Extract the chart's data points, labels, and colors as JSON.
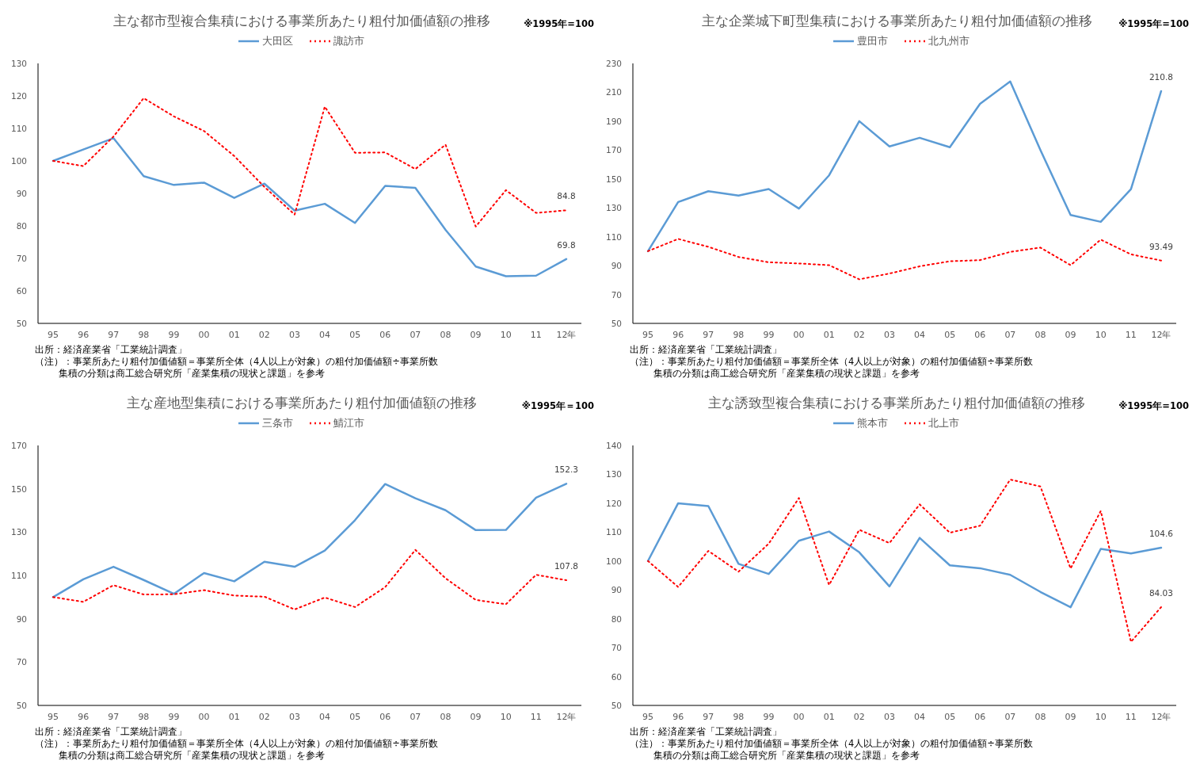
{
  "chart_data": [
    {
      "type": "line",
      "title": "主な都市型複合集積における事業所あたり粗付加価値額の推移",
      "categories": [
        "95",
        "96",
        "97",
        "98",
        "99",
        "00",
        "01",
        "02",
        "03",
        "04",
        "05",
        "06",
        "07",
        "08",
        "09",
        "10",
        "11",
        "12年"
      ],
      "ylim": [
        50,
        130
      ],
      "yticks": [
        50,
        60,
        70,
        80,
        90,
        100,
        110,
        120,
        130
      ],
      "grid": false,
      "legend": "top",
      "annotations": [
        "※1995年=100",
        "出所：経済産業省「工業統計調査」",
        "（注）：事業所あたり粗付加価値額＝事業所全体（4人以上が対象）の粗付加価値額÷事業所数",
        "集積の分類は商工総合研究所「産業集積の現状と課題」を参考"
      ],
      "series": [
        {
          "name": "大田区",
          "color": "#5b9bd5",
          "line_style": "solid",
          "values": [
            100,
            103.5,
            107,
            95.3,
            92.6,
            93.3,
            88.6,
            93,
            84.7,
            86.8,
            80.9,
            92.3,
            91.7,
            78.8,
            67.5,
            64.5,
            64.7,
            69.8
          ],
          "value_labels": [
            null,
            null,
            null,
            null,
            null,
            null,
            null,
            null,
            null,
            null,
            null,
            null,
            null,
            null,
            null,
            null,
            null,
            "69.8"
          ]
        },
        {
          "name": "諏訪市",
          "color": "#ff0000",
          "line_style": "dotted",
          "values": [
            100,
            98.4,
            107.5,
            119.3,
            113.7,
            109.2,
            101.5,
            92,
            83.5,
            116.7,
            102.5,
            102.6,
            97.5,
            105,
            79.8,
            91,
            84,
            84.8
          ],
          "value_labels": [
            null,
            null,
            null,
            null,
            null,
            null,
            null,
            null,
            null,
            null,
            null,
            null,
            null,
            null,
            null,
            null,
            null,
            "84.8"
          ]
        }
      ]
    },
    {
      "type": "line",
      "title": "主な企業城下町型集積における事業所あたり粗付加価値額の推移",
      "categories": [
        "95",
        "96",
        "97",
        "98",
        "99",
        "00",
        "01",
        "02",
        "03",
        "04",
        "05",
        "06",
        "07",
        "08",
        "09",
        "10",
        "11",
        "12年"
      ],
      "ylim": [
        50,
        230
      ],
      "yticks": [
        50,
        70,
        90,
        110,
        130,
        150,
        170,
        190,
        210,
        230
      ],
      "grid": false,
      "legend": "top",
      "annotations": [
        "※1995年=100",
        "出所：経済産業省「工業統計調査」",
        "（注）：事業所あたり粗付加価値額＝事業所全体（4人以上が対象）の粗付加価値額÷事業所数",
        "集積の分類は商工総合研究所「産業集積の現状と課題」を参考"
      ],
      "series": [
        {
          "name": "豊田市",
          "color": "#5b9bd5",
          "line_style": "solid",
          "values": [
            100,
            134,
            141.5,
            138.5,
            143,
            129.5,
            152.5,
            190,
            172.5,
            178.5,
            172,
            202,
            217.5,
            170,
            125,
            120.3,
            143,
            210.8
          ],
          "value_labels": [
            null,
            null,
            null,
            null,
            null,
            null,
            null,
            null,
            null,
            null,
            null,
            null,
            null,
            null,
            null,
            null,
            null,
            "210.8"
          ]
        },
        {
          "name": "北九州市",
          "color": "#ff0000",
          "line_style": "dotted",
          "values": [
            100,
            108.5,
            103,
            96,
            92.3,
            91.5,
            90.3,
            80.5,
            84.5,
            89.5,
            93,
            93.8,
            99.5,
            102.5,
            90.3,
            108,
            97.8,
            93.49
          ],
          "value_labels": [
            null,
            null,
            null,
            null,
            null,
            null,
            null,
            null,
            null,
            null,
            null,
            null,
            null,
            null,
            null,
            null,
            null,
            "93.49"
          ]
        }
      ]
    },
    {
      "type": "line",
      "title": "主な産地型集積における事業所あたり粗付加価値額の推移",
      "categories": [
        "95",
        "96",
        "97",
        "98",
        "99",
        "00",
        "01",
        "02",
        "03",
        "04",
        "05",
        "06",
        "07",
        "08",
        "09",
        "10",
        "11",
        "12年"
      ],
      "ylim": [
        50,
        170
      ],
      "yticks": [
        50,
        70,
        90,
        110,
        130,
        150,
        170
      ],
      "grid": false,
      "legend": "top",
      "annotations": [
        "※1995年＝100",
        "出所：経済産業省「工業統計調査」",
        "（注）：事業所あたり粗付加価値額＝事業所全体（4人以上が対象）の粗付加価値額÷事業所数",
        "集積の分類は商工総合研究所「産業集積の現状と課題」を参考"
      ],
      "series": [
        {
          "name": "三条市",
          "color": "#5b9bd5",
          "line_style": "solid",
          "values": [
            100,
            108.2,
            114,
            107.9,
            101.5,
            111.1,
            107.3,
            116.3,
            114,
            121.5,
            135.5,
            152.2,
            145.6,
            140.1,
            130.9,
            131,
            145.9,
            152.3
          ],
          "value_labels": [
            null,
            null,
            null,
            null,
            null,
            null,
            null,
            null,
            null,
            null,
            null,
            null,
            null,
            null,
            null,
            null,
            null,
            "152.3"
          ]
        },
        {
          "name": "鯖江市",
          "color": "#ff0000",
          "line_style": "dotted",
          "values": [
            100,
            97.8,
            105.5,
            101.2,
            101.3,
            103.2,
            100.7,
            100.2,
            94.3,
            99.8,
            95.4,
            104.6,
            121.8,
            108.7,
            98.7,
            96.7,
            110.3,
            107.8
          ],
          "value_labels": [
            null,
            null,
            null,
            null,
            null,
            null,
            null,
            null,
            null,
            null,
            null,
            null,
            null,
            null,
            null,
            null,
            null,
            "107.8"
          ]
        }
      ]
    },
    {
      "type": "line",
      "title": "主な誘致型複合集積における事業所あたり粗付加価値額の推移",
      "categories": [
        "95",
        "96",
        "97",
        "98",
        "99",
        "00",
        "01",
        "02",
        "03",
        "04",
        "05",
        "06",
        "07",
        "08",
        "09",
        "10",
        "11",
        "12年"
      ],
      "ylim": [
        50,
        140
      ],
      "yticks": [
        50,
        60,
        70,
        80,
        90,
        100,
        110,
        120,
        130,
        140
      ],
      "grid": false,
      "legend": "top",
      "annotations": [
        "※1995年=100",
        "出所：経済産業省「工業統計調査」",
        "（注）：事業所あたり粗付加価値額＝事業所全体（4人以上が対象）の粗付加価値額÷事業所数",
        "集積の分類は商工総合研究所「産業集積の現状と課題」を参考"
      ],
      "series": [
        {
          "name": "熊本市",
          "color": "#5b9bd5",
          "line_style": "solid",
          "values": [
            100,
            120,
            119,
            99,
            95.5,
            107,
            110.2,
            103,
            91.2,
            108,
            98.5,
            97.5,
            95.2,
            89.3,
            84,
            104.2,
            102.6,
            104.6
          ],
          "value_labels": [
            null,
            null,
            null,
            null,
            null,
            null,
            null,
            null,
            null,
            null,
            null,
            null,
            null,
            null,
            null,
            null,
            null,
            "104.6"
          ]
        },
        {
          "name": "北上市",
          "color": "#ff0000",
          "line_style": "dotted",
          "values": [
            100,
            91,
            103.5,
            96.3,
            106,
            121.8,
            91.7,
            110.8,
            106.2,
            119.6,
            109.8,
            112.2,
            128.2,
            125.8,
            97.4,
            117.3,
            72,
            84.03
          ],
          "value_labels": [
            null,
            null,
            null,
            null,
            null,
            null,
            null,
            null,
            null,
            null,
            null,
            null,
            null,
            null,
            null,
            null,
            null,
            "84.03"
          ]
        }
      ]
    }
  ]
}
